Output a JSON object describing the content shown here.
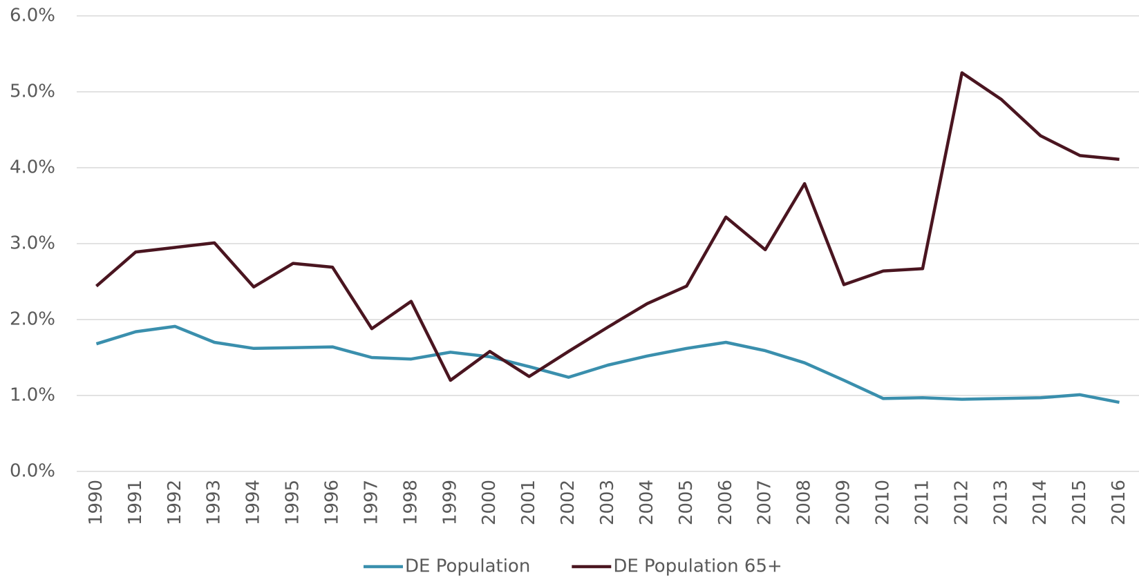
{
  "chart_data": {
    "type": "line",
    "categories": [
      "1990",
      "1991",
      "1992",
      "1993",
      "1994",
      "1995",
      "1996",
      "1997",
      "1998",
      "1999",
      "2000",
      "2001",
      "2002",
      "2003",
      "2004",
      "2005",
      "2006",
      "2007",
      "2008",
      "2009",
      "2010",
      "2011",
      "2012",
      "2013",
      "2014",
      "2015",
      "2016"
    ],
    "series": [
      {
        "name": "DE Population",
        "color": "#3a8fad",
        "values": [
          1.68,
          1.84,
          1.91,
          1.7,
          1.62,
          1.63,
          1.64,
          1.5,
          1.48,
          1.57,
          1.51,
          1.38,
          1.24,
          1.4,
          1.52,
          1.62,
          1.7,
          1.59,
          1.43,
          1.2,
          0.96,
          0.97,
          0.95,
          0.96,
          0.97,
          1.01,
          0.91
        ]
      },
      {
        "name": "DE Population 65+",
        "color": "#4a1520",
        "values": [
          2.44,
          2.89,
          2.95,
          3.01,
          2.43,
          2.74,
          2.69,
          1.88,
          2.24,
          1.2,
          1.58,
          1.25,
          1.58,
          1.9,
          2.21,
          2.44,
          3.35,
          2.92,
          3.79,
          2.46,
          2.64,
          2.67,
          5.25,
          4.9,
          4.42,
          4.16,
          4.11
        ]
      }
    ],
    "ylim": [
      0,
      6
    ],
    "yticks": [
      {
        "value": 0,
        "label": "0.0%"
      },
      {
        "value": 1,
        "label": "1.0%"
      },
      {
        "value": 2,
        "label": "2.0%"
      },
      {
        "value": 3,
        "label": "3.0%"
      },
      {
        "value": 4,
        "label": "4.0%"
      },
      {
        "value": 5,
        "label": "5.0%"
      },
      {
        "value": 6,
        "label": "6.0%"
      }
    ],
    "grid": true,
    "legend": "bottom"
  }
}
